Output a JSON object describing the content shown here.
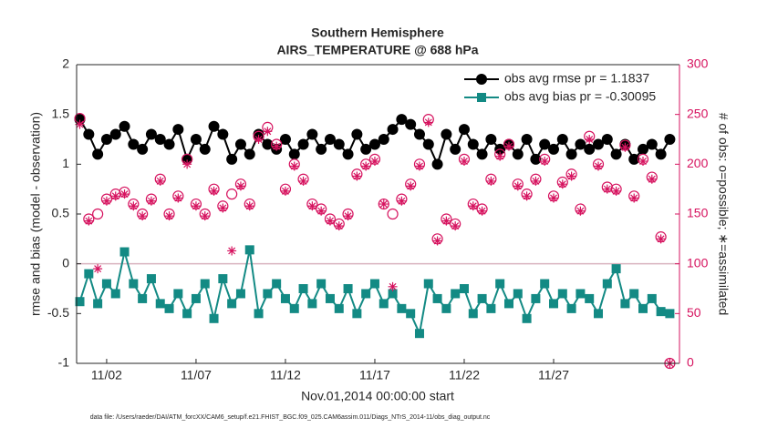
{
  "chart_data": {
    "type": "line",
    "title": "Southern Hemisphere",
    "subtitle": "AIRS_TEMPERATURE @ 688 hPa",
    "x_label": "Nov.01,2014 00:00:00 start",
    "y_label": "rmse and bias (model - observation)",
    "y2_label": "# of obs: o=possible; ∗=assimilated",
    "footnote": "data file: /Users/raeder/DAI/ATM_forcXX/CAM6_setup/f.e21.FHIST_BGC.f09_025.CAM6assim.011/Diags_NTrS_2014-11/obs_diag_output.nc",
    "xlim": [
      -0.68,
      33.04
    ],
    "xticks": [
      {
        "value": 1,
        "label": "11/02"
      },
      {
        "value": 6,
        "label": "11/07"
      },
      {
        "value": 11,
        "label": "11/12"
      },
      {
        "value": 16,
        "label": "11/17"
      },
      {
        "value": 21,
        "label": "11/22"
      },
      {
        "value": 26,
        "label": "11/27"
      }
    ],
    "ylim": [
      -1,
      2
    ],
    "yticks": [
      -1,
      -0.5,
      0,
      0.5,
      1,
      1.5,
      2
    ],
    "y2lim": [
      0,
      300
    ],
    "y2ticks": [
      0,
      50,
      100,
      150,
      200,
      250,
      300
    ],
    "y2_color": "#d6135f",
    "zero_line_color": "#d9b3bf",
    "legend": "northeast",
    "x": [
      -0.5,
      0,
      0.5,
      1,
      1.5,
      2,
      2.5,
      3,
      3.5,
      4,
      4.5,
      5,
      5.5,
      6,
      6.5,
      7,
      7.5,
      8,
      8.5,
      9,
      9.5,
      10,
      10.5,
      11,
      11.5,
      12,
      12.5,
      13,
      13.5,
      14,
      14.5,
      15,
      15.5,
      16,
      16.5,
      17,
      17.5,
      18,
      18.5,
      19,
      19.5,
      20,
      20.5,
      21,
      21.5,
      22,
      22.5,
      23,
      23.5,
      24,
      24.5,
      25,
      25.5,
      26,
      26.5,
      27,
      27.5,
      28,
      28.5,
      29,
      29.5,
      30,
      30.5,
      31,
      31.5,
      32,
      32.5
    ],
    "series": [
      {
        "name": "obs avg rmse pr = 1.1837",
        "color": "#000000",
        "marker": "circle",
        "line": true,
        "values": [
          1.45,
          1.3,
          1.1,
          1.25,
          1.3,
          1.38,
          1.2,
          1.15,
          1.3,
          1.25,
          1.2,
          1.35,
          1.05,
          1.25,
          1.15,
          1.38,
          1.3,
          1.05,
          1.2,
          1.1,
          1.3,
          1.2,
          1.15,
          1.25,
          1.1,
          1.2,
          1.3,
          1.15,
          1.25,
          1.2,
          1.1,
          1.3,
          1.15,
          1.2,
          1.25,
          1.35,
          1.45,
          1.4,
          1.3,
          1.2,
          1.0,
          1.3,
          1.15,
          1.35,
          1.2,
          1.1,
          1.25,
          1.15,
          1.2,
          1.1,
          1.25,
          1.05,
          1.2,
          1.15,
          1.25,
          1.1,
          1.2,
          1.15,
          1.2,
          1.25,
          1.1,
          1.2,
          1.05,
          1.15,
          1.2,
          1.1,
          1.25
        ]
      },
      {
        "name": "obs avg bias pr = -0.30095",
        "color": "#138a84",
        "marker": "square",
        "line": true,
        "values": [
          -0.38,
          -0.1,
          -0.4,
          -0.2,
          -0.3,
          0.12,
          -0.2,
          -0.35,
          -0.15,
          -0.4,
          -0.45,
          -0.3,
          -0.5,
          -0.35,
          -0.2,
          -0.55,
          -0.15,
          -0.4,
          -0.3,
          0.14,
          -0.5,
          -0.3,
          -0.2,
          -0.35,
          -0.45,
          -0.25,
          -0.4,
          -0.2,
          -0.35,
          -0.45,
          -0.25,
          -0.5,
          -0.3,
          -0.2,
          -0.4,
          -0.3,
          -0.45,
          -0.5,
          -0.7,
          -0.2,
          -0.35,
          -0.45,
          -0.3,
          -0.25,
          -0.5,
          -0.35,
          -0.45,
          -0.2,
          -0.4,
          -0.3,
          -0.55,
          -0.35,
          -0.2,
          -0.4,
          -0.3,
          -0.45,
          -0.3,
          -0.35,
          -0.5,
          -0.2,
          -0.05,
          -0.4,
          -0.3,
          -0.45,
          -0.35,
          -0.48,
          -0.5
        ]
      },
      {
        "color": "#d6135f",
        "marker": "circle-open",
        "line": false,
        "axis": "y2",
        "values": [
          246,
          145,
          150,
          165,
          170,
          172,
          160,
          150,
          165,
          185,
          150,
          168,
          205,
          160,
          150,
          175,
          158,
          170,
          180,
          160,
          228,
          237,
          220,
          175,
          200,
          185,
          160,
          155,
          145,
          140,
          150,
          190,
          200,
          205,
          160,
          150,
          165,
          180,
          200,
          245,
          125,
          145,
          140,
          205,
          160,
          155,
          185,
          210,
          220,
          180,
          170,
          185,
          205,
          168,
          182,
          190,
          155,
          228,
          200,
          177,
          175,
          219,
          168,
          205,
          187,
          127,
          0
        ]
      },
      {
        "color": "#d6135f",
        "marker": "asterisk",
        "line": false,
        "axis": "y2",
        "values": [
          240,
          143,
          95,
          163,
          168,
          170,
          158,
          148,
          163,
          183,
          148,
          166,
          200,
          158,
          148,
          173,
          156,
          113,
          178,
          158,
          225,
          233,
          218,
          173,
          198,
          183,
          158,
          153,
          143,
          138,
          148,
          188,
          198,
          203,
          160,
          77,
          163,
          178,
          198,
          242,
          123,
          143,
          138,
          203,
          158,
          153,
          183,
          208,
          218,
          178,
          168,
          183,
          203,
          166,
          180,
          188,
          153,
          225,
          198,
          175,
          173,
          217,
          166,
          203,
          185,
          125,
          0
        ]
      }
    ]
  }
}
